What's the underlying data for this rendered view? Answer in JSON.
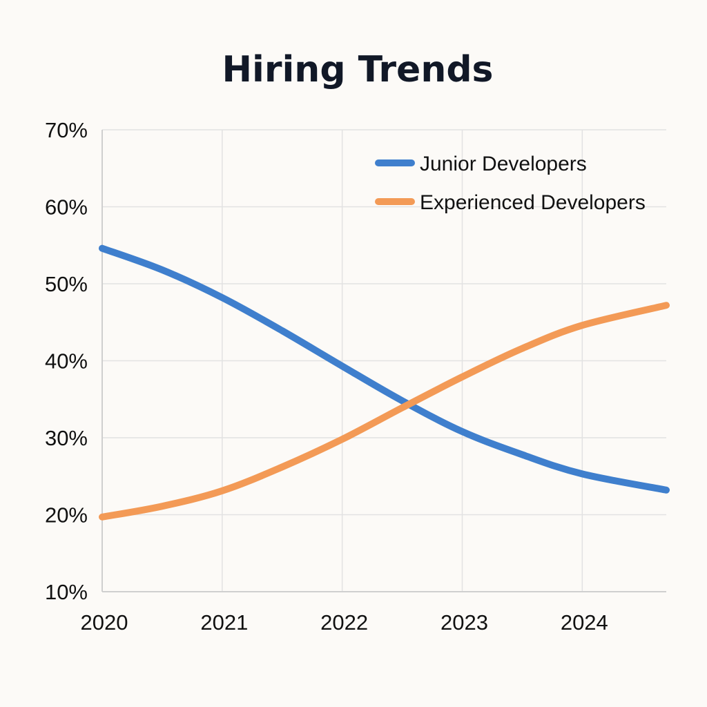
{
  "chart_data": {
    "type": "line",
    "title": "Hiring Trends",
    "xlabel": "",
    "ylabel": "",
    "categories": [
      "2020",
      "2021",
      "2022",
      "2023",
      "2024"
    ],
    "x": [
      2020,
      2021,
      2022,
      2023,
      2024
    ],
    "xlim": [
      2020,
      2024.7
    ],
    "ylim": [
      10,
      70
    ],
    "y_ticks": [
      10,
      20,
      30,
      40,
      50,
      60,
      70
    ],
    "y_tick_labels": [
      "10%",
      "20%",
      "30%",
      "40%",
      "50%",
      "60%",
      "70%"
    ],
    "x_tick_labels": [
      "2020",
      "2021",
      "2022",
      "2023",
      "2024"
    ],
    "grid": true,
    "legend_position": "top-right",
    "series": [
      {
        "name": "Junior Developers",
        "color": "#3f7fcd",
        "points": [
          {
            "x": 2020,
            "y": 54.6
          },
          {
            "x": 2020.5,
            "y": 51.8
          },
          {
            "x": 2021,
            "y": 48.2
          },
          {
            "x": 2021.5,
            "y": 43.9
          },
          {
            "x": 2022,
            "y": 39.3
          },
          {
            "x": 2022.5,
            "y": 34.8
          },
          {
            "x": 2023,
            "y": 30.8
          },
          {
            "x": 2023.5,
            "y": 27.8
          },
          {
            "x": 2024,
            "y": 25.3
          },
          {
            "x": 2024.7,
            "y": 23.2
          }
        ]
      },
      {
        "name": "Experienced Developers",
        "color": "#f39a56",
        "points": [
          {
            "x": 2020,
            "y": 19.7
          },
          {
            "x": 2020.5,
            "y": 21.1
          },
          {
            "x": 2021,
            "y": 23.1
          },
          {
            "x": 2021.5,
            "y": 26.2
          },
          {
            "x": 2022,
            "y": 29.8
          },
          {
            "x": 2022.5,
            "y": 33.9
          },
          {
            "x": 2023,
            "y": 37.9
          },
          {
            "x": 2023.5,
            "y": 41.6
          },
          {
            "x": 2024,
            "y": 44.6
          },
          {
            "x": 2024.7,
            "y": 47.2
          }
        ]
      }
    ]
  }
}
